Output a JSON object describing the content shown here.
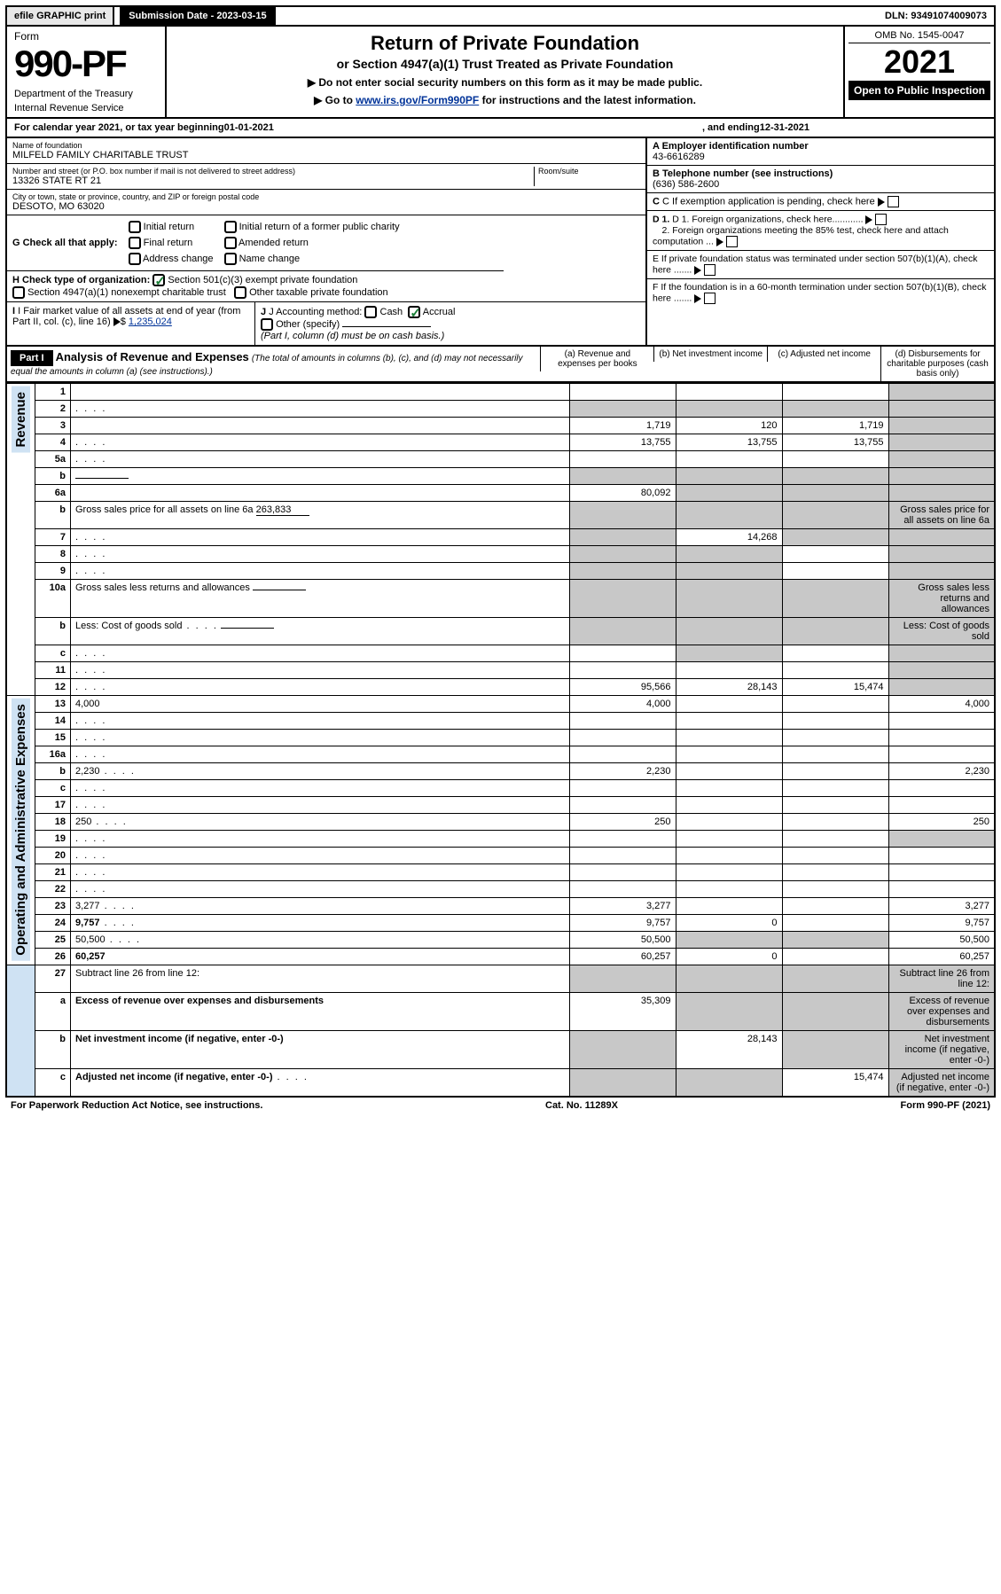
{
  "topbar": {
    "efile": "efile GRAPHIC print",
    "subdate_label": "Submission Date - 2023-03-15",
    "dln": "DLN: 93491074009073"
  },
  "header": {
    "form_label": "Form",
    "form_number": "990-PF",
    "dept1": "Department of the Treasury",
    "dept2": "Internal Revenue Service",
    "title": "Return of Private Foundation",
    "subtitle": "or Section 4947(a)(1) Trust Treated as Private Foundation",
    "note1": "▶ Do not enter social security numbers on this form as it may be made public.",
    "note2_pre": "▶ Go to ",
    "note2_link": "www.irs.gov/Form990PF",
    "note2_post": " for instructions and the latest information.",
    "omb": "OMB No. 1545-0047",
    "year": "2021",
    "open_public": "Open to Public Inspection"
  },
  "calendar": {
    "text_pre": "For calendar year 2021, or tax year beginning ",
    "begin": "01-01-2021",
    "text_mid": ", and ending ",
    "end": "12-31-2021"
  },
  "entity": {
    "name_label": "Name of foundation",
    "name": "MILFELD FAMILY CHARITABLE TRUST",
    "addr_label": "Number and street (or P.O. box number if mail is not delivered to street address)",
    "room_label": "Room/suite",
    "addr": "13326 STATE RT 21",
    "city_label": "City or town, state or province, country, and ZIP or foreign postal code",
    "city": "DESOTO, MO  63020",
    "ein_label": "A Employer identification number",
    "ein": "43-6616289",
    "phone_label": "B Telephone number (see instructions)",
    "phone": "(636) 586-2600",
    "c_label": "C If exemption application is pending, check here",
    "d1_label": "D 1. Foreign organizations, check here............",
    "d2_label": "2. Foreign organizations meeting the 85% test, check here and attach computation ...",
    "e_label": "E  If private foundation status was terminated under section 507(b)(1)(A), check here .......",
    "f_label": "F  If the foundation is in a 60-month termination under section 507(b)(1)(B), check here .......",
    "g_label": "G Check all that apply:",
    "g_initial": "Initial return",
    "g_initial_former": "Initial return of a former public charity",
    "g_final": "Final return",
    "g_amended": "Amended return",
    "g_address": "Address change",
    "g_name": "Name change",
    "h_label": "H Check type of organization:",
    "h_501c3": "Section 501(c)(3) exempt private foundation",
    "h_4947": "Section 4947(a)(1) nonexempt charitable trust",
    "h_other": "Other taxable private foundation",
    "i_label": "I Fair market value of all assets at end of year (from Part II, col. (c), line 16)",
    "i_value": "1,235,024",
    "j_label": "J Accounting method:",
    "j_cash": "Cash",
    "j_accrual": "Accrual",
    "j_other": "Other (specify)",
    "j_note": "(Part I, column (d) must be on cash basis.)"
  },
  "part1": {
    "label": "Part I",
    "title": "Analysis of Revenue and Expenses",
    "desc": "(The total of amounts in columns (b), (c), and (d) may not necessarily equal the amounts in column (a) (see instructions).)",
    "col_a": "(a)  Revenue and expenses per books",
    "col_b": "(b)  Net investment income",
    "col_c": "(c)  Adjusted net income",
    "col_d": "(d)  Disbursements for charitable purposes (cash basis only)"
  },
  "sections": {
    "revenue": "Revenue",
    "expenses": "Operating and Administrative Expenses"
  },
  "rows": [
    {
      "n": "1",
      "d": "",
      "a": "",
      "b": "",
      "c": "",
      "shade_d": true
    },
    {
      "n": "2",
      "d": "",
      "dots": true,
      "a": "",
      "b": "",
      "c": "",
      "shade_all": true,
      "checked": true,
      "bold_not": true
    },
    {
      "n": "3",
      "d": "",
      "a": "1,719",
      "b": "120",
      "c": "1,719",
      "shade_d": true
    },
    {
      "n": "4",
      "d": "",
      "dots": true,
      "a": "13,755",
      "b": "13,755",
      "c": "13,755",
      "shade_d": true
    },
    {
      "n": "5a",
      "d": "",
      "dots": true,
      "a": "",
      "b": "",
      "c": "",
      "shade_d": true
    },
    {
      "n": "b",
      "d": "",
      "fill": true,
      "a": "",
      "b": "",
      "c": "",
      "shade_all": true
    },
    {
      "n": "6a",
      "d": "",
      "a": "80,092",
      "b": "",
      "c": "",
      "shade_bcd": true
    },
    {
      "n": "b",
      "d": "Gross sales price for all assets on line 6a",
      "fill": true,
      "fillval": "263,833",
      "shade_all": true
    },
    {
      "n": "7",
      "d": "",
      "dots": true,
      "a": "",
      "b": "14,268",
      "c": "",
      "shade_a": true,
      "shade_cd": true
    },
    {
      "n": "8",
      "d": "",
      "dots": true,
      "a": "",
      "b": "",
      "c": "",
      "shade_ab": true,
      "shade_d": true
    },
    {
      "n": "9",
      "d": "",
      "dots": true,
      "a": "",
      "b": "",
      "c": "",
      "shade_ab": true,
      "shade_d": true
    },
    {
      "n": "10a",
      "d": "Gross sales less returns and allowances",
      "fill": true,
      "shade_all": true
    },
    {
      "n": "b",
      "d": "Less: Cost of goods sold",
      "dots": true,
      "fill": true,
      "shade_all": true
    },
    {
      "n": "c",
      "d": "",
      "dots": true,
      "a": "",
      "b": "",
      "c": "",
      "shade_b": true,
      "shade_d": true
    },
    {
      "n": "11",
      "d": "",
      "dots": true,
      "a": "",
      "b": "",
      "c": "",
      "shade_d": true
    },
    {
      "n": "12",
      "d": "",
      "dots": true,
      "bold": true,
      "a": "95,566",
      "b": "28,143",
      "c": "15,474",
      "shade_d": true
    }
  ],
  "exp_rows": [
    {
      "n": "13",
      "d": "4,000",
      "a": "4,000",
      "b": "",
      "c": ""
    },
    {
      "n": "14",
      "d": "",
      "dots": true,
      "a": "",
      "b": "",
      "c": ""
    },
    {
      "n": "15",
      "d": "",
      "dots": true,
      "a": "",
      "b": "",
      "c": ""
    },
    {
      "n": "16a",
      "d": "",
      "dots": true,
      "a": "",
      "b": "",
      "c": ""
    },
    {
      "n": "b",
      "d": "2,230",
      "dots": true,
      "a": "2,230",
      "b": "",
      "c": ""
    },
    {
      "n": "c",
      "d": "",
      "dots": true,
      "a": "",
      "b": "",
      "c": ""
    },
    {
      "n": "17",
      "d": "",
      "dots": true,
      "a": "",
      "b": "",
      "c": ""
    },
    {
      "n": "18",
      "d": "250",
      "dots": true,
      "a": "250",
      "b": "",
      "c": ""
    },
    {
      "n": "19",
      "d": "",
      "dots": true,
      "a": "",
      "b": "",
      "c": "",
      "shade_d": true
    },
    {
      "n": "20",
      "d": "",
      "dots": true,
      "a": "",
      "b": "",
      "c": ""
    },
    {
      "n": "21",
      "d": "",
      "dots": true,
      "a": "",
      "b": "",
      "c": ""
    },
    {
      "n": "22",
      "d": "",
      "dots": true,
      "a": "",
      "b": "",
      "c": ""
    },
    {
      "n": "23",
      "d": "3,277",
      "dots": true,
      "a": "3,277",
      "b": "",
      "c": ""
    },
    {
      "n": "24",
      "d": "9,757",
      "dots": true,
      "bold": true,
      "a": "9,757",
      "b": "0",
      "c": ""
    },
    {
      "n": "25",
      "d": "50,500",
      "dots": true,
      "a": "50,500",
      "b": "",
      "c": "",
      "shade_bc": true
    },
    {
      "n": "26",
      "d": "60,257",
      "bold": true,
      "a": "60,257",
      "b": "0",
      "c": ""
    }
  ],
  "net_rows": [
    {
      "n": "27",
      "d": "Subtract line 26 from line 12:",
      "shade_all": true
    },
    {
      "n": "a",
      "d": "Excess of revenue over expenses and disbursements",
      "bold": true,
      "a": "35,309",
      "shade_bcd": true
    },
    {
      "n": "b",
      "d": "Net investment income (if negative, enter -0-)",
      "bold": true,
      "b": "28,143",
      "shade_a": true,
      "shade_cd": true
    },
    {
      "n": "c",
      "d": "Adjusted net income (if negative, enter -0-)",
      "bold": true,
      "dots": true,
      "c": "15,474",
      "shade_ab": true,
      "shade_d": true
    }
  ],
  "footer": {
    "left": "For Paperwork Reduction Act Notice, see instructions.",
    "mid": "Cat. No. 11289X",
    "right": "Form 990-PF (2021)"
  },
  "colors": {
    "vert_bg": "#cfe2f3",
    "shade": "#c8c8c8",
    "link": "#003399",
    "check": "#1a7f37"
  }
}
